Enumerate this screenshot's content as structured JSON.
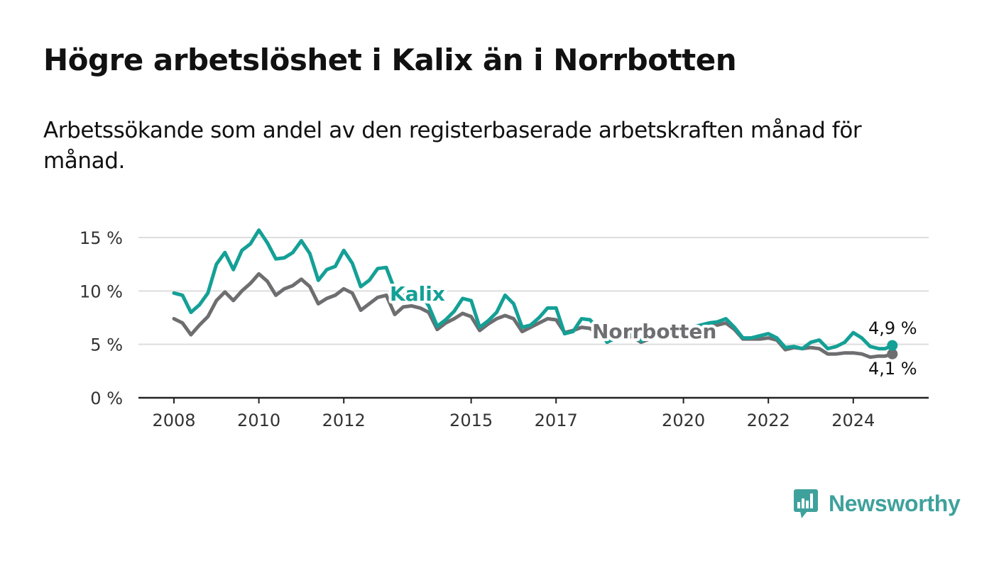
{
  "title": "Högre arbetslöshet i Kalix än i Norrbotten",
  "subtitle": "Arbetssökande som andel av den registerbaserade arbetskraften månad för månad.",
  "logo": {
    "text": "Newsworthy",
    "icon": "bar-chart-speech-bubble-icon"
  },
  "colors": {
    "kalix": "#14a096",
    "norrbotten": "#6e6e70",
    "grid": "#dddddd",
    "axis": "#222222"
  },
  "chart_data": {
    "type": "line",
    "title": "Högre arbetslöshet i Kalix än i Norrbotten",
    "subtitle": "Arbetssökande som andel av den registerbaserade arbetskraften månad för månad.",
    "xlabel": "",
    "ylabel": "",
    "xlim": [
      2007.6,
      2025.75
    ],
    "ylim": [
      0,
      15
    ],
    "x_ticks": [
      2008,
      2010,
      2012,
      2015,
      2017,
      2020,
      2022,
      2024
    ],
    "x_tick_labels": [
      "2008",
      "2010",
      "2012",
      "2015",
      "2017",
      "2020",
      "2022",
      "2024"
    ],
    "y_ticks": [
      0,
      5,
      10,
      15
    ],
    "y_tick_labels": [
      "0 %",
      "5 %",
      "10 %",
      "15 %"
    ],
    "grid": "horizontal",
    "legend": "inline labels",
    "series": [
      {
        "name": "Kalix",
        "x": [
          2008.0,
          2008.2,
          2008.4,
          2008.6,
          2008.8,
          2009.0,
          2009.2,
          2009.4,
          2009.6,
          2009.8,
          2010.0,
          2010.2,
          2010.4,
          2010.6,
          2010.8,
          2011.0,
          2011.2,
          2011.4,
          2011.6,
          2011.8,
          2012.0,
          2012.2,
          2012.4,
          2012.6,
          2012.8,
          2013.0,
          2013.2,
          2013.4,
          2013.6,
          2013.8,
          2014.0,
          2014.2,
          2014.4,
          2014.6,
          2014.8,
          2015.0,
          2015.2,
          2015.4,
          2015.6,
          2015.8,
          2016.0,
          2016.2,
          2016.4,
          2016.6,
          2016.8,
          2017.0,
          2017.2,
          2017.4,
          2017.6,
          2017.8,
          2018.0,
          2018.2,
          2018.4,
          2018.6,
          2018.8,
          2019.0,
          2019.2,
          2019.4,
          2019.6,
          2019.8,
          2020.0,
          2020.2,
          2020.4,
          2020.6,
          2020.8,
          2021.0,
          2021.2,
          2021.4,
          2021.6,
          2021.8,
          2022.0,
          2022.2,
          2022.4,
          2022.6,
          2022.8,
          2023.0,
          2023.2,
          2023.4,
          2023.6,
          2023.8,
          2024.0,
          2024.2,
          2024.4,
          2024.6,
          2024.75,
          2024.92
        ],
        "y": [
          9.8,
          9.6,
          8.0,
          8.7,
          9.8,
          12.5,
          13.6,
          12.0,
          13.8,
          14.4,
          15.7,
          14.5,
          13.0,
          13.1,
          13.6,
          14.7,
          13.5,
          11.0,
          12.0,
          12.3,
          13.8,
          12.6,
          10.4,
          11.0,
          12.1,
          12.2,
          10.1,
          9.5,
          10.0,
          9.8,
          8.6,
          6.7,
          7.3,
          8.1,
          9.3,
          9.1,
          6.6,
          7.2,
          8.0,
          9.6,
          8.8,
          6.6,
          6.8,
          7.5,
          8.4,
          8.4,
          6.0,
          6.2,
          7.4,
          7.3,
          6.4,
          5.2,
          5.6,
          6.0,
          6.1,
          5.3,
          5.7,
          6.3,
          6.6,
          6.6,
          6.4,
          6.6,
          6.8,
          7.0,
          7.1,
          7.4,
          6.6,
          5.6,
          5.6,
          5.8,
          6.0,
          5.6,
          4.7,
          4.8,
          4.6,
          5.2,
          5.4,
          4.6,
          4.8,
          5.2,
          6.1,
          5.6,
          4.8,
          4.6,
          4.6,
          4.9
        ]
      },
      {
        "name": "Norrbotten",
        "x": [
          2008.0,
          2008.2,
          2008.4,
          2008.6,
          2008.8,
          2009.0,
          2009.2,
          2009.4,
          2009.6,
          2009.8,
          2010.0,
          2010.2,
          2010.4,
          2010.6,
          2010.8,
          2011.0,
          2011.2,
          2011.4,
          2011.6,
          2011.8,
          2012.0,
          2012.2,
          2012.4,
          2012.6,
          2012.8,
          2013.0,
          2013.2,
          2013.4,
          2013.6,
          2013.8,
          2014.0,
          2014.2,
          2014.4,
          2014.6,
          2014.8,
          2015.0,
          2015.2,
          2015.4,
          2015.6,
          2015.8,
          2016.0,
          2016.2,
          2016.4,
          2016.6,
          2016.8,
          2017.0,
          2017.2,
          2017.4,
          2017.6,
          2017.8,
          2018.0,
          2018.2,
          2018.4,
          2018.6,
          2018.8,
          2019.0,
          2019.2,
          2019.4,
          2019.6,
          2019.8,
          2020.0,
          2020.2,
          2020.4,
          2020.6,
          2020.8,
          2021.0,
          2021.2,
          2021.4,
          2021.6,
          2021.8,
          2022.0,
          2022.2,
          2022.4,
          2022.6,
          2022.8,
          2023.0,
          2023.2,
          2023.4,
          2023.6,
          2023.8,
          2024.0,
          2024.2,
          2024.4,
          2024.6,
          2024.75,
          2024.92
        ],
        "y": [
          7.4,
          7.0,
          5.9,
          6.8,
          7.6,
          9.1,
          9.9,
          9.1,
          10.0,
          10.7,
          11.6,
          10.9,
          9.6,
          10.2,
          10.5,
          11.1,
          10.4,
          8.8,
          9.3,
          9.6,
          10.2,
          9.8,
          8.2,
          8.8,
          9.4,
          9.6,
          7.8,
          8.5,
          8.6,
          8.4,
          8.0,
          6.4,
          7.0,
          7.4,
          7.9,
          7.6,
          6.3,
          6.9,
          7.4,
          7.7,
          7.4,
          6.2,
          6.6,
          7.0,
          7.4,
          7.3,
          6.1,
          6.3,
          6.6,
          6.5,
          5.9,
          5.3,
          5.5,
          5.8,
          5.7,
          5.2,
          5.5,
          5.8,
          6.0,
          6.0,
          5.9,
          6.1,
          6.4,
          6.7,
          6.8,
          7.0,
          6.4,
          5.5,
          5.5,
          5.5,
          5.6,
          5.4,
          4.5,
          4.7,
          4.6,
          4.7,
          4.6,
          4.1,
          4.1,
          4.2,
          4.2,
          4.1,
          3.8,
          3.9,
          3.9,
          4.1
        ]
      }
    ],
    "series_labels": [
      "Kalix",
      "Norrbotten"
    ],
    "end_labels": [
      "4,9 %",
      "4,1 %"
    ]
  }
}
